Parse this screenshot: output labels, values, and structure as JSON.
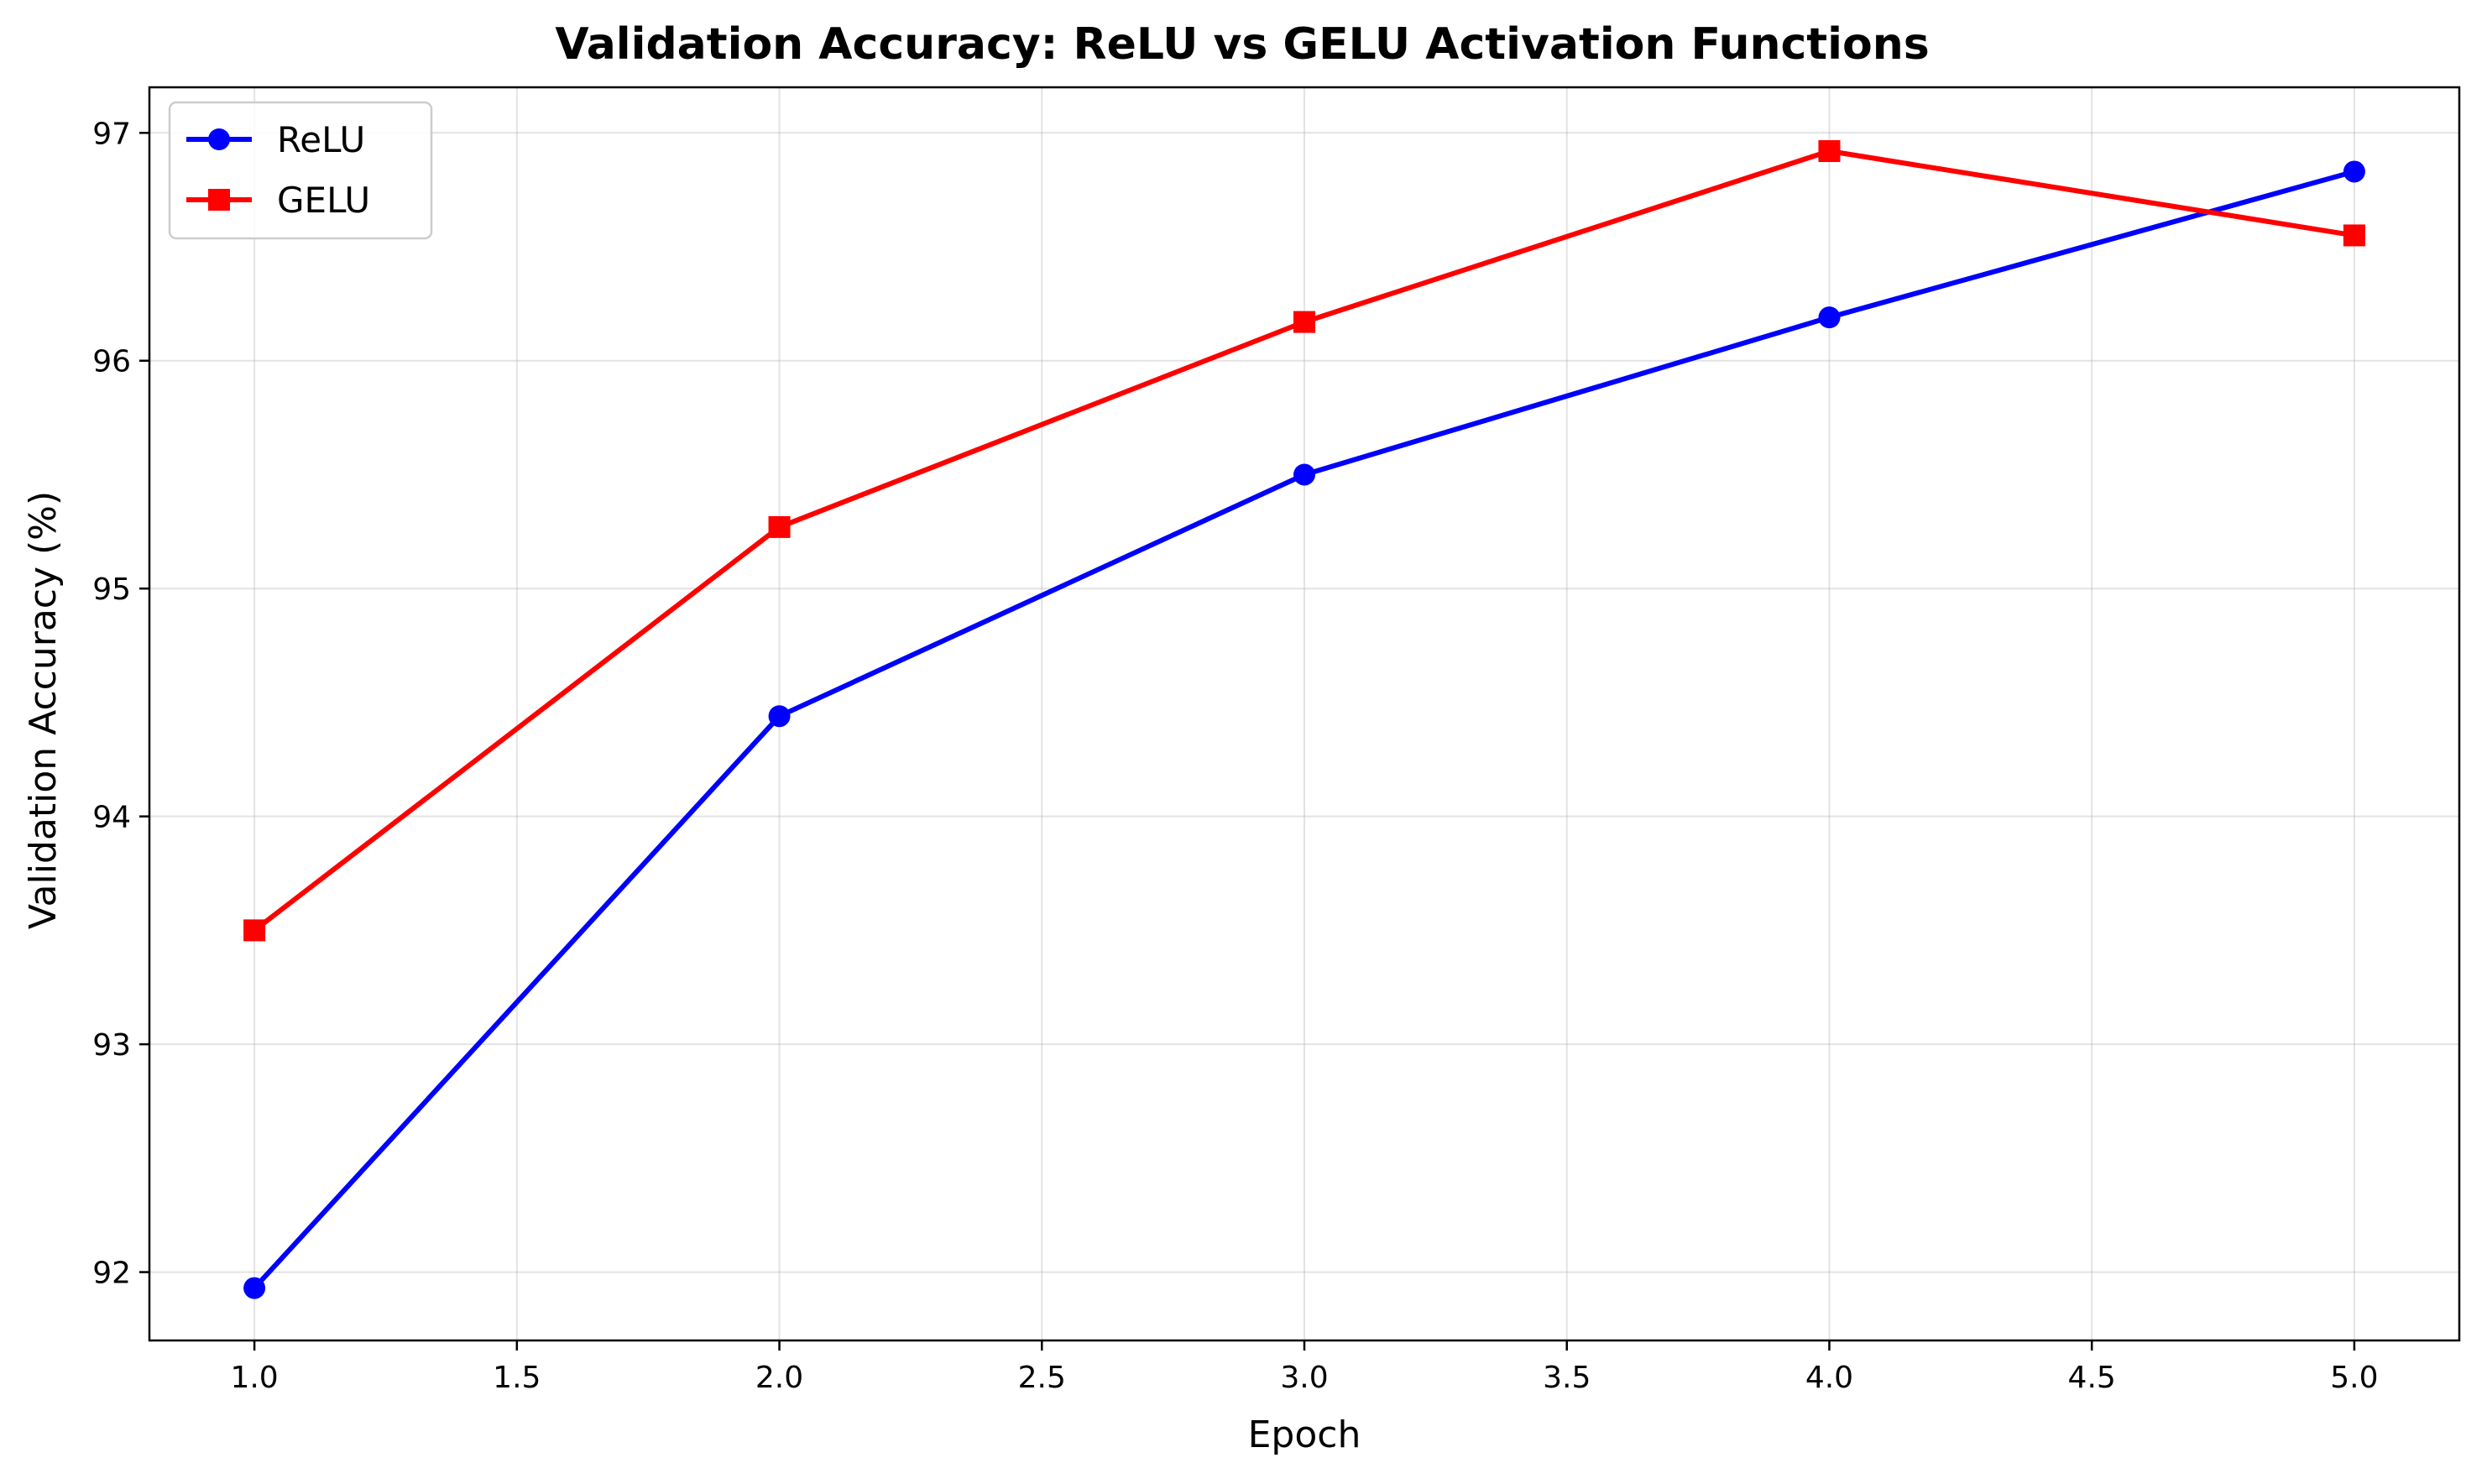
{
  "chart_data": {
    "type": "line",
    "title": "Validation Accuracy: ReLU vs GELU Activation Functions",
    "xlabel": "Epoch",
    "ylabel": "Validation Accuracy (%)",
    "xlim": [
      0.8,
      5.2
    ],
    "ylim": [
      91.7,
      97.2
    ],
    "xticks": [
      1.0,
      1.5,
      2.0,
      2.5,
      3.0,
      3.5,
      4.0,
      4.5,
      5.0
    ],
    "xtick_labels": [
      "1.0",
      "1.5",
      "2.0",
      "2.5",
      "3.0",
      "3.5",
      "4.0",
      "4.5",
      "5.0"
    ],
    "yticks": [
      92,
      93,
      94,
      95,
      96,
      97
    ],
    "ytick_labels": [
      "92",
      "93",
      "94",
      "95",
      "96",
      "97"
    ],
    "grid": true,
    "legend_position": "top-left",
    "x": [
      1,
      2,
      3,
      4,
      5
    ],
    "series": [
      {
        "name": "ReLU",
        "color": "#0000ff",
        "marker": "circle",
        "values": [
          91.93,
          94.44,
          95.5,
          96.19,
          96.83
        ]
      },
      {
        "name": "GELU",
        "color": "#ff0000",
        "marker": "square",
        "values": [
          93.5,
          95.27,
          96.17,
          96.92,
          96.55
        ]
      }
    ]
  }
}
